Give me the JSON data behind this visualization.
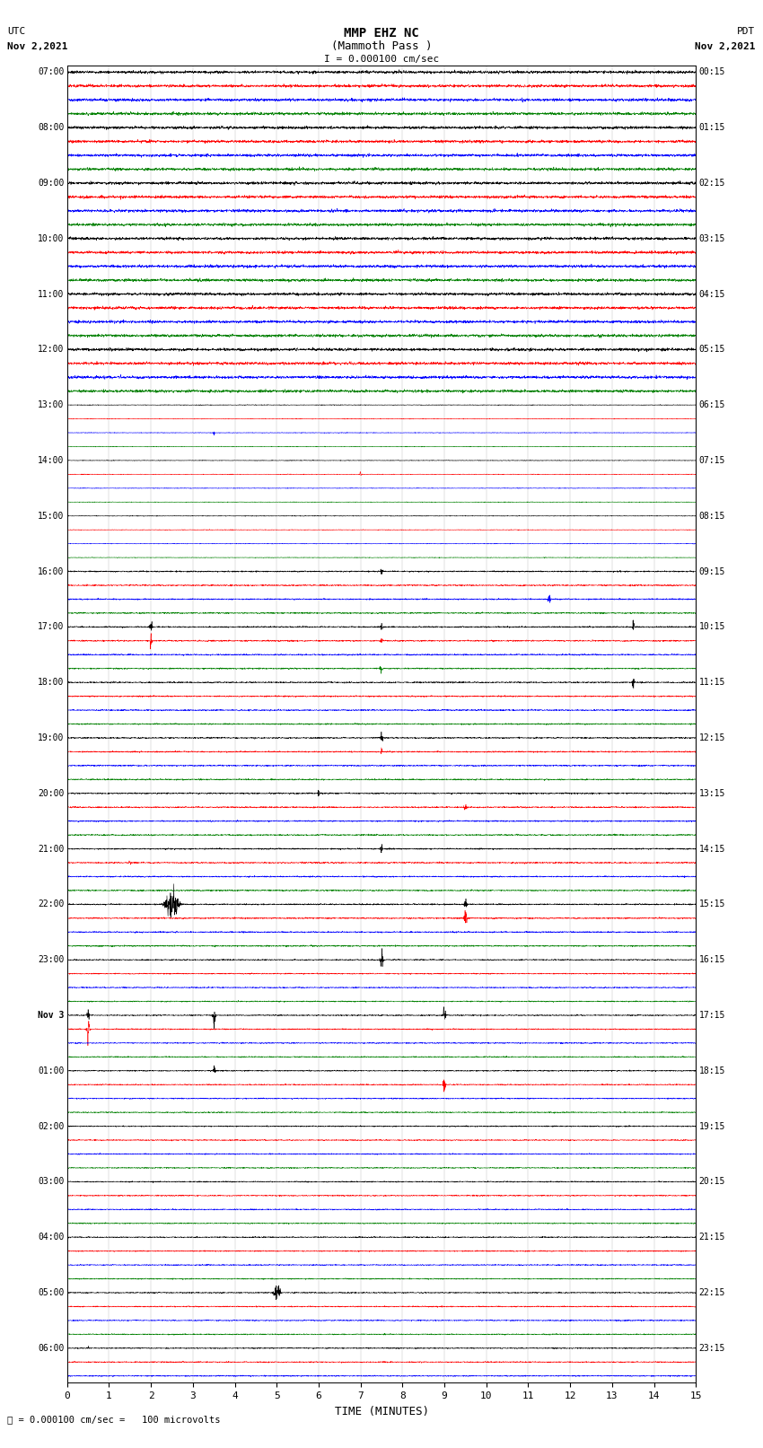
{
  "title_line1": "MMP EHZ NC",
  "title_line2": "(Mammoth Pass )",
  "scale_label": "I = 0.000100 cm/sec",
  "left_label_top": "UTC",
  "left_label_date": "Nov 2,2021",
  "right_label_top": "PDT",
  "right_label_date": "Nov 2,2021",
  "bottom_label": "TIME (MINUTES)",
  "footer_label": "0.000100 cm/sec =   100 microvolts",
  "total_rows": 95,
  "row_colors": [
    "black",
    "red",
    "blue",
    "green"
  ],
  "xlim": [
    0,
    15
  ],
  "xticks": [
    0,
    1,
    2,
    3,
    4,
    5,
    6,
    7,
    8,
    9,
    10,
    11,
    12,
    13,
    14,
    15
  ],
  "left_time_labels": {
    "0": "07:00",
    "4": "08:00",
    "8": "09:00",
    "12": "10:00",
    "16": "11:00",
    "20": "12:00",
    "24": "13:00",
    "28": "14:00",
    "32": "15:00",
    "36": "16:00",
    "40": "17:00",
    "44": "18:00",
    "48": "19:00",
    "52": "20:00",
    "56": "21:00",
    "60": "22:00",
    "64": "23:00",
    "68": "Nov 3",
    "72": "01:00",
    "76": "02:00",
    "80": "03:00",
    "84": "04:00",
    "88": "05:00",
    "92": "06:00"
  },
  "right_time_labels": {
    "0": "00:15",
    "4": "01:15",
    "8": "02:15",
    "12": "03:15",
    "16": "04:15",
    "20": "05:15",
    "24": "06:15",
    "28": "07:15",
    "32": "08:15",
    "36": "09:15",
    "40": "10:15",
    "44": "11:15",
    "48": "12:15",
    "52": "13:15",
    "56": "14:15",
    "60": "15:15",
    "64": "16:15",
    "68": "17:15",
    "72": "18:15",
    "76": "19:15",
    "80": "20:15",
    "84": "21:15",
    "88": "22:15",
    "92": "23:15"
  },
  "background_color": "white",
  "grid_color": "#999999",
  "figsize": [
    8.5,
    16.13
  ],
  "dpi": 100,
  "amplitude_scale": 0.18,
  "linewidth": 0.4
}
